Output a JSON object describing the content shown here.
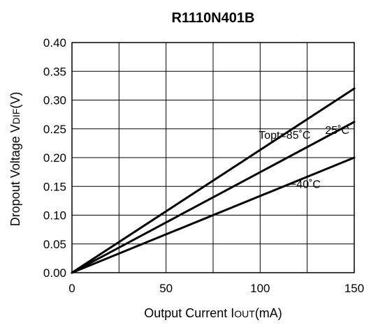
{
  "chart_data": {
    "type": "line",
    "title": "R1110N401B",
    "xlabel": "Output Current IOUT(mA)",
    "xlabel_parts": [
      "Output Current I",
      "OUT",
      "(mA)"
    ],
    "ylabel": "Dropout Voltage VDIF(V)",
    "ylabel_parts": [
      "Dropout Voltage V",
      "DIF",
      "(V)"
    ],
    "xlim": [
      0,
      150
    ],
    "ylim": [
      0,
      0.4
    ],
    "x_ticks": [
      0,
      25,
      50,
      75,
      100,
      125,
      150
    ],
    "x_tick_labels": [
      "0",
      "",
      "50",
      "",
      "100",
      "",
      "150"
    ],
    "y_ticks": [
      0,
      0.05,
      0.1,
      0.15,
      0.2,
      0.25,
      0.3,
      0.35,
      0.4
    ],
    "y_tick_labels": [
      "0.00",
      "0.05",
      "0.10",
      "0.15",
      "0.20",
      "0.25",
      "0.30",
      "0.35",
      "0.40"
    ],
    "grid": true,
    "line_color": "#000000",
    "series": [
      {
        "name": "Topt=85˚C",
        "x": [
          0,
          150
        ],
        "y": [
          0,
          0.32
        ]
      },
      {
        "name": "25˚C",
        "x": [
          0,
          150
        ],
        "y": [
          0,
          0.262
        ]
      },
      {
        "name": "−40˚C",
        "x": [
          0,
          150
        ],
        "y": [
          0,
          0.2
        ]
      }
    ]
  }
}
